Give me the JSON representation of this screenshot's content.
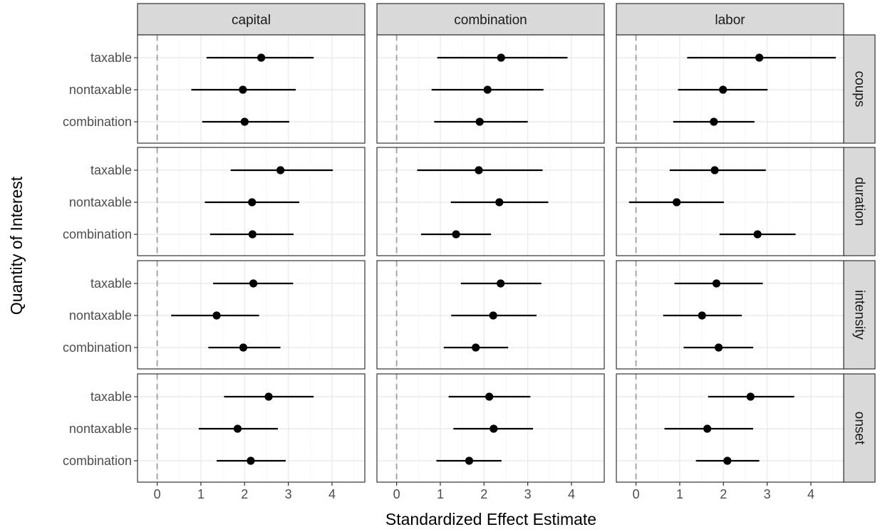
{
  "chart_data": {
    "type": "errorbar",
    "xlabel": "Standardized Effect Estimate",
    "ylabel": "Quantity of Interest",
    "xlim": [
      -0.45,
      4.75
    ],
    "x_ticks": [
      0,
      1,
      2,
      3,
      4
    ],
    "reference_line_x": 0,
    "grid": true,
    "column_facets": [
      "capital",
      "combination",
      "labor"
    ],
    "row_facets": [
      "coups",
      "duration",
      "intensity",
      "onset"
    ],
    "y_categories": [
      "taxable",
      "nontaxable",
      "combination"
    ],
    "panels": [
      {
        "row": "coups",
        "col": "capital",
        "points": [
          {
            "y": "taxable",
            "est": 2.38,
            "lo": 1.13,
            "hi": 3.58
          },
          {
            "y": "nontaxable",
            "est": 1.96,
            "lo": 0.78,
            "hi": 3.17
          },
          {
            "y": "combination",
            "est": 2.0,
            "lo": 1.03,
            "hi": 3.02
          }
        ]
      },
      {
        "row": "coups",
        "col": "combination",
        "points": [
          {
            "y": "taxable",
            "est": 2.39,
            "lo": 0.93,
            "hi": 3.91
          },
          {
            "y": "nontaxable",
            "est": 2.08,
            "lo": 0.8,
            "hi": 3.36
          },
          {
            "y": "combination",
            "est": 1.9,
            "lo": 0.86,
            "hi": 3.0
          }
        ]
      },
      {
        "row": "coups",
        "col": "labor",
        "points": [
          {
            "y": "taxable",
            "est": 2.82,
            "lo": 1.17,
            "hi": 4.57
          },
          {
            "y": "nontaxable",
            "est": 1.99,
            "lo": 0.96,
            "hi": 3.01
          },
          {
            "y": "combination",
            "est": 1.78,
            "lo": 0.85,
            "hi": 2.71
          }
        ]
      },
      {
        "row": "duration",
        "col": "capital",
        "points": [
          {
            "y": "taxable",
            "est": 2.82,
            "lo": 1.68,
            "hi": 4.02
          },
          {
            "y": "nontaxable",
            "est": 2.17,
            "lo": 1.09,
            "hi": 3.25
          },
          {
            "y": "combination",
            "est": 2.18,
            "lo": 1.21,
            "hi": 3.12
          }
        ]
      },
      {
        "row": "duration",
        "col": "combination",
        "points": [
          {
            "y": "taxable",
            "est": 1.88,
            "lo": 0.47,
            "hi": 3.34
          },
          {
            "y": "nontaxable",
            "est": 2.35,
            "lo": 1.24,
            "hi": 3.47
          },
          {
            "y": "combination",
            "est": 1.36,
            "lo": 0.56,
            "hi": 2.16
          }
        ]
      },
      {
        "row": "duration",
        "col": "labor",
        "points": [
          {
            "y": "taxable",
            "est": 1.8,
            "lo": 0.77,
            "hi": 2.97
          },
          {
            "y": "nontaxable",
            "est": 0.93,
            "lo": -0.16,
            "hi": 2.01
          },
          {
            "y": "combination",
            "est": 2.78,
            "lo": 1.91,
            "hi": 3.65
          }
        ]
      },
      {
        "row": "intensity",
        "col": "capital",
        "points": [
          {
            "y": "taxable",
            "est": 2.2,
            "lo": 1.28,
            "hi": 3.11
          },
          {
            "y": "nontaxable",
            "est": 1.36,
            "lo": 0.32,
            "hi": 2.33
          },
          {
            "y": "combination",
            "est": 1.97,
            "lo": 1.17,
            "hi": 2.82
          }
        ]
      },
      {
        "row": "intensity",
        "col": "combination",
        "points": [
          {
            "y": "taxable",
            "est": 2.38,
            "lo": 1.47,
            "hi": 3.31
          },
          {
            "y": "nontaxable",
            "est": 2.21,
            "lo": 1.25,
            "hi": 3.2
          },
          {
            "y": "combination",
            "est": 1.81,
            "lo": 1.08,
            "hi": 2.55
          }
        ]
      },
      {
        "row": "intensity",
        "col": "labor",
        "points": [
          {
            "y": "taxable",
            "est": 1.84,
            "lo": 0.88,
            "hi": 2.9
          },
          {
            "y": "nontaxable",
            "est": 1.51,
            "lo": 0.62,
            "hi": 2.42
          },
          {
            "y": "combination",
            "est": 1.89,
            "lo": 1.09,
            "hi": 2.68
          }
        ]
      },
      {
        "row": "onset",
        "col": "capital",
        "points": [
          {
            "y": "taxable",
            "est": 2.55,
            "lo": 1.53,
            "hi": 3.58
          },
          {
            "y": "nontaxable",
            "est": 1.84,
            "lo": 0.95,
            "hi": 2.76
          },
          {
            "y": "combination",
            "est": 2.14,
            "lo": 1.36,
            "hi": 2.94
          }
        ]
      },
      {
        "row": "onset",
        "col": "combination",
        "points": [
          {
            "y": "taxable",
            "est": 2.12,
            "lo": 1.19,
            "hi": 3.06
          },
          {
            "y": "nontaxable",
            "est": 2.22,
            "lo": 1.3,
            "hi": 3.12
          },
          {
            "y": "combination",
            "est": 1.66,
            "lo": 0.91,
            "hi": 2.4
          }
        ]
      },
      {
        "row": "onset",
        "col": "labor",
        "points": [
          {
            "y": "taxable",
            "est": 2.62,
            "lo": 1.65,
            "hi": 3.62
          },
          {
            "y": "nontaxable",
            "est": 1.63,
            "lo": 0.65,
            "hi": 2.68
          },
          {
            "y": "combination",
            "est": 2.09,
            "lo": 1.37,
            "hi": 2.82
          }
        ]
      }
    ],
    "colors": {
      "strip_fill": "#d9d9d9",
      "panel_border": "#333333",
      "grid_major": "#ebebeb",
      "grid_minor": "#f5f5f5",
      "reference_line": "#9e9e9e",
      "point": "#000000",
      "tick_text": "#4d4d4d"
    }
  }
}
